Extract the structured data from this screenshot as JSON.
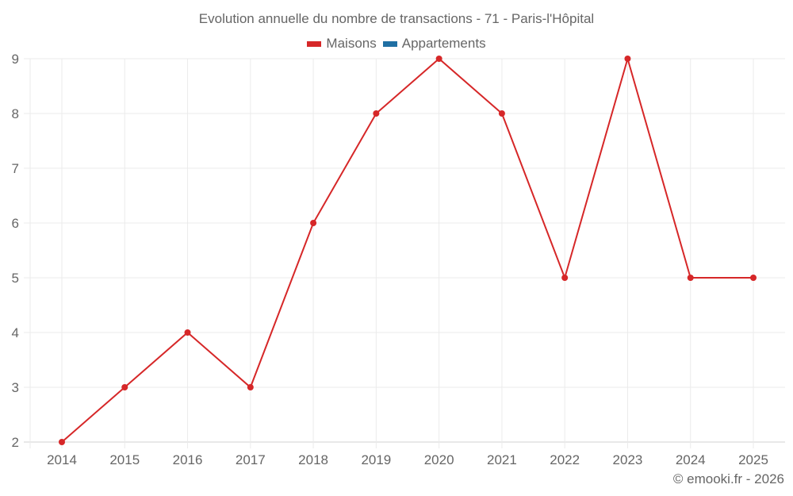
{
  "chart_data": {
    "type": "line",
    "title": "Evolution annuelle du nombre de transactions - 71 - Paris-l'Hôpital",
    "xlabel": "",
    "ylabel": "",
    "categories": [
      "2014",
      "2015",
      "2016",
      "2017",
      "2018",
      "2019",
      "2020",
      "2021",
      "2022",
      "2023",
      "2024",
      "2025"
    ],
    "series": [
      {
        "name": "Maisons",
        "color": "#d62728",
        "values": [
          2,
          3,
          4,
          3,
          6,
          8,
          9,
          8,
          5,
          9,
          5,
          5
        ]
      },
      {
        "name": "Appartements",
        "color": "#1f6fa3",
        "values": []
      }
    ],
    "ylim": [
      2,
      9
    ],
    "yticks": [
      2,
      3,
      4,
      5,
      6,
      7,
      8,
      9
    ],
    "grid": true,
    "legend_position": "top"
  },
  "title": "Evolution annuelle du nombre de transactions - 71 - Paris-l'Hôpital",
  "legend": [
    {
      "label": "Maisons",
      "color": "#d62728"
    },
    {
      "label": "Appartements",
      "color": "#1f6fa3"
    }
  ],
  "credit": "© emooki.fr - 2026"
}
